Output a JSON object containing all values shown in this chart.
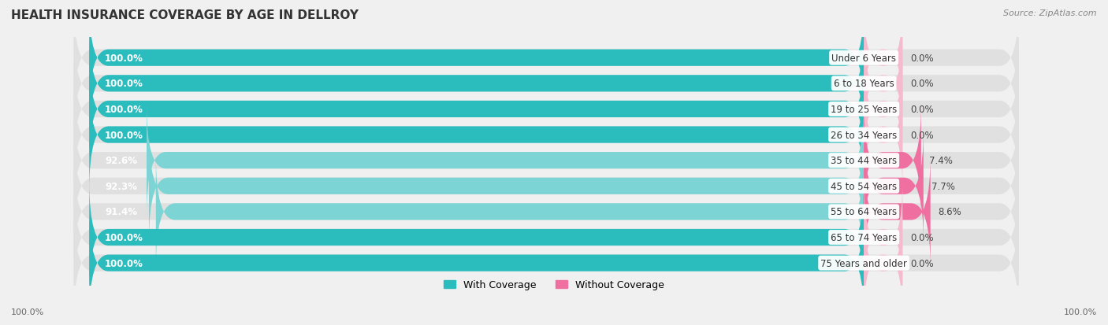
{
  "title": "HEALTH INSURANCE COVERAGE BY AGE IN DELLROY",
  "source": "Source: ZipAtlas.com",
  "categories": [
    "Under 6 Years",
    "6 to 18 Years",
    "19 to 25 Years",
    "26 to 34 Years",
    "35 to 44 Years",
    "45 to 54 Years",
    "55 to 64 Years",
    "65 to 74 Years",
    "75 Years and older"
  ],
  "with_coverage": [
    100.0,
    100.0,
    100.0,
    100.0,
    92.6,
    92.3,
    91.4,
    100.0,
    100.0
  ],
  "without_coverage": [
    0.0,
    0.0,
    0.0,
    0.0,
    7.4,
    7.7,
    8.6,
    0.0,
    0.0
  ],
  "color_with_full": "#2BBDBD",
  "color_with_partial": "#7DD4D4",
  "color_without_full": "#EE6FA0",
  "color_without_light": "#F5BACE",
  "background_color": "#f0f0f0",
  "title_fontsize": 11,
  "label_fontsize": 8.5,
  "legend_fontsize": 9,
  "bar_height": 0.65
}
